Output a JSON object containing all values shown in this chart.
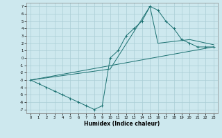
{
  "xlabel": "Humidex (Indice chaleur)",
  "bg_color": "#cde8ee",
  "grid_color": "#aacdd5",
  "line_color": "#1a7070",
  "xlim": [
    -0.5,
    23.5
  ],
  "ylim": [
    -7.5,
    7.5
  ],
  "xticks": [
    0,
    1,
    2,
    3,
    4,
    5,
    6,
    7,
    8,
    9,
    10,
    11,
    12,
    13,
    14,
    15,
    16,
    17,
    18,
    19,
    20,
    21,
    22,
    23
  ],
  "yticks": [
    -7,
    -6,
    -5,
    -4,
    -3,
    -2,
    -1,
    0,
    1,
    2,
    3,
    4,
    5,
    6,
    7
  ],
  "main_x": [
    0,
    1,
    2,
    3,
    4,
    5,
    6,
    7,
    8,
    9,
    10,
    11,
    12,
    13,
    14,
    15,
    16,
    17,
    18,
    19,
    20,
    21,
    22,
    23
  ],
  "main_y": [
    -3,
    -3.5,
    -4,
    -4.5,
    -5,
    -5.5,
    -6,
    -6.5,
    -7,
    -6.5,
    0,
    1,
    3,
    4,
    5,
    7,
    6.5,
    5,
    4,
    2.5,
    2,
    1.5,
    1.5,
    1.5
  ],
  "line1_x": [
    0,
    23
  ],
  "line1_y": [
    -3,
    1.5
  ],
  "line2_x": [
    0,
    10,
    15,
    16,
    20,
    23
  ],
  "line2_y": [
    -3,
    -1.5,
    7,
    2,
    2.5,
    1.8
  ]
}
